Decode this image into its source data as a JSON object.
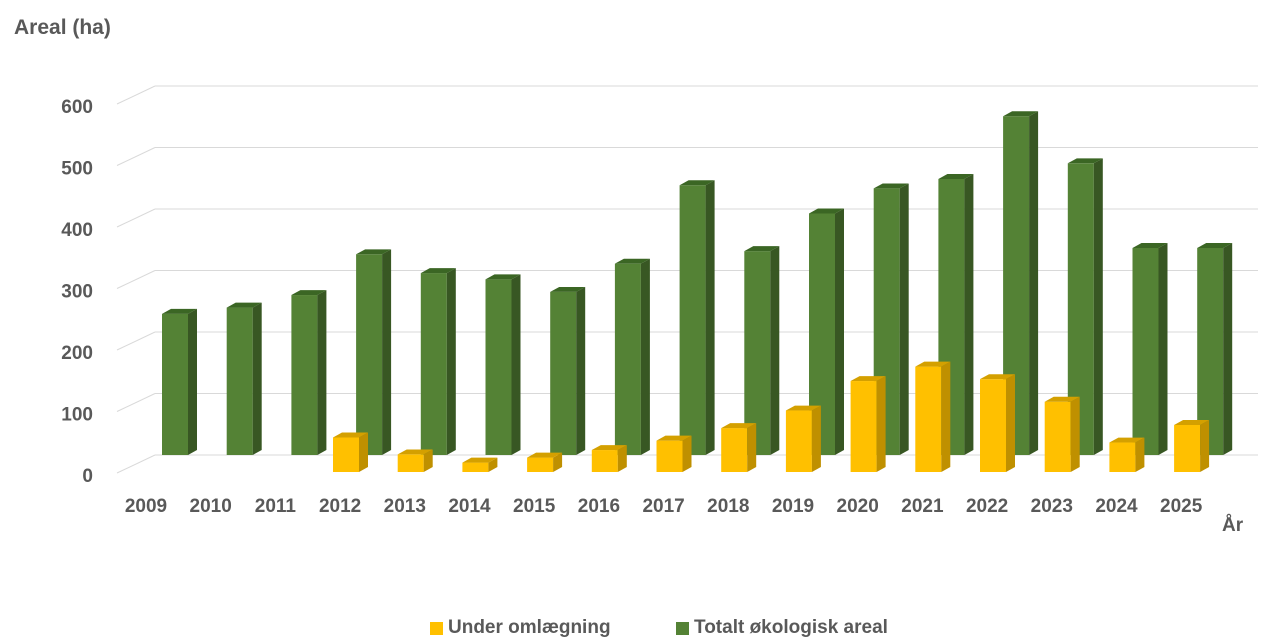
{
  "chart_data": {
    "type": "bar",
    "ylabel": "Areal (ha)",
    "xlabel": "År",
    "ylim": [
      0,
      600
    ],
    "yticks": [
      "0",
      "100",
      "200",
      "300",
      "400",
      "500",
      "600"
    ],
    "categories": [
      "2009",
      "2010",
      "2011",
      "2012",
      "2013",
      "2014",
      "2015",
      "2016",
      "2017",
      "2018",
      "2019",
      "2020",
      "2021",
      "2022",
      "2023",
      "2024",
      "2025"
    ],
    "series": [
      {
        "name": "Under omlægning",
        "color": "#ffc000",
        "values": [
          0,
          0,
          0,
          55,
          28,
          15,
          23,
          35,
          50,
          70,
          98,
          145,
          168,
          148,
          112,
          47,
          75
        ]
      },
      {
        "name": "Totalt økologisk areal",
        "color": "#548235",
        "values": [
          225,
          235,
          255,
          320,
          290,
          280,
          260,
          305,
          430,
          325,
          385,
          425,
          440,
          540,
          465,
          330,
          330
        ]
      }
    ],
    "grid": true,
    "legend": "bottom"
  }
}
